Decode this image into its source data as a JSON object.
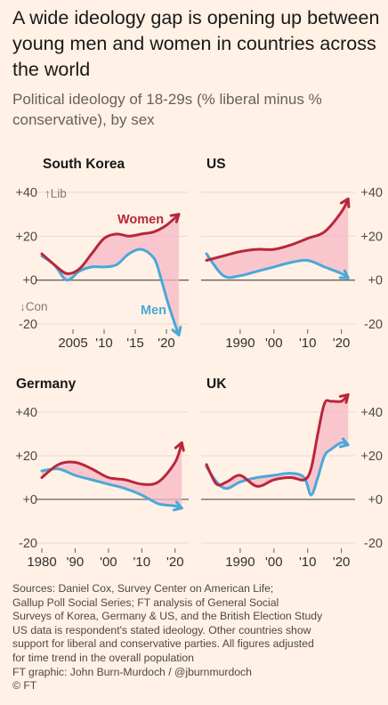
{
  "header": {
    "title": "A wide ideology gap is opening up between young men and women in countries across the world",
    "subtitle": "Political ideology of 18-29s (% liberal minus % conservative), by sex"
  },
  "colors": {
    "women": "#b8273b",
    "men": "#4aa8d8",
    "gap_fill": "#f8b7c6",
    "background": "#fff1e5"
  },
  "chart_data": [
    {
      "type": "line",
      "title": "South Korea",
      "ylim": [
        -20,
        40
      ],
      "xlim": [
        2000,
        2023
      ],
      "yticks": [
        40,
        20,
        0,
        -20
      ],
      "ytick_labels": [
        "+40",
        "+20",
        "+0",
        "-20"
      ],
      "xticks": [
        2005,
        2010,
        2015,
        2020
      ],
      "xtick_labels": [
        "2005",
        "'10",
        "'15",
        "'20"
      ],
      "annotations": {
        "up": "↑Lib",
        "down": "↓Con"
      },
      "series": [
        {
          "name": "Women",
          "x": [
            2000,
            2002,
            2004,
            2006,
            2008,
            2010,
            2012,
            2014,
            2016,
            2018,
            2020,
            2022
          ],
          "y": [
            12,
            7,
            3,
            5,
            12,
            19,
            21,
            20,
            21,
            22,
            25,
            30
          ]
        },
        {
          "name": "Men",
          "x": [
            2000,
            2002,
            2004,
            2006,
            2008,
            2010,
            2012,
            2014,
            2016,
            2018,
            2019,
            2020,
            2021,
            2022
          ],
          "y": [
            11,
            7,
            0,
            4,
            6,
            6,
            7,
            12,
            14,
            10,
            2,
            -8,
            -17,
            -25
          ]
        }
      ]
    },
    {
      "type": "line",
      "title": "US",
      "ylim": [
        -20,
        40
      ],
      "xlim": [
        1980,
        2023
      ],
      "yticks": [
        40,
        20,
        0,
        -20
      ],
      "ytick_labels": [
        "+40",
        "+20",
        "+0",
        "-20"
      ],
      "xticks": [
        1990,
        2000,
        2010,
        2020
      ],
      "xtick_labels": [
        "1990",
        "'00",
        "'10",
        "'20"
      ],
      "series": [
        {
          "name": "Women",
          "x": [
            1980,
            1985,
            1990,
            1995,
            2000,
            2005,
            2010,
            2015,
            2020,
            2022
          ],
          "y": [
            9,
            11,
            13,
            14,
            14,
            16,
            19,
            22,
            31,
            37
          ]
        },
        {
          "name": "Men",
          "x": [
            1980,
            1985,
            1990,
            1995,
            2000,
            2005,
            2010,
            2015,
            2020,
            2022
          ],
          "y": [
            12,
            2,
            2,
            4,
            6,
            8,
            9,
            6,
            3,
            1
          ]
        }
      ]
    },
    {
      "type": "line",
      "title": "Germany",
      "ylim": [
        -20,
        40
      ],
      "xlim": [
        1980,
        2023
      ],
      "yticks": [
        40,
        20,
        0,
        -20
      ],
      "ytick_labels": [
        "+40",
        "+20",
        "+0",
        "-20"
      ],
      "xticks": [
        1980,
        1990,
        2000,
        2010,
        2020
      ],
      "xtick_labels": [
        "1980",
        "'90",
        "'00",
        "'10",
        "'20"
      ],
      "series": [
        {
          "name": "Women",
          "x": [
            1980,
            1985,
            1990,
            1995,
            2000,
            2005,
            2010,
            2015,
            2020,
            2022
          ],
          "y": [
            10,
            16,
            17,
            14,
            10,
            9,
            7,
            8,
            17,
            26
          ]
        },
        {
          "name": "Men",
          "x": [
            1980,
            1985,
            1990,
            1995,
            2000,
            2005,
            2010,
            2015,
            2020,
            2022
          ],
          "y": [
            13,
            14,
            11,
            9,
            7,
            5,
            2,
            -2,
            -3,
            -4
          ]
        }
      ]
    },
    {
      "type": "line",
      "title": "UK",
      "ylim": [
        -20,
        40
      ],
      "xlim": [
        1980,
        2023
      ],
      "yticks": [
        40,
        20,
        0,
        -20
      ],
      "ytick_labels": [
        "+40",
        "+20",
        "+0",
        "-20"
      ],
      "xticks": [
        1990,
        2000,
        2010,
        2020
      ],
      "xtick_labels": [
        "1990",
        "'00",
        "'10",
        "'20"
      ],
      "series": [
        {
          "name": "Women",
          "x": [
            1980,
            1983,
            1986,
            1990,
            1995,
            2000,
            2005,
            2009,
            2011,
            2013,
            2015,
            2017,
            2020,
            2022
          ],
          "y": [
            16,
            7,
            8,
            11,
            6,
            9,
            10,
            9,
            14,
            30,
            44,
            45,
            45,
            48
          ]
        },
        {
          "name": "Men",
          "x": [
            1980,
            1983,
            1986,
            1990,
            1995,
            2000,
            2005,
            2009,
            2011,
            2013,
            2015,
            2017,
            2020,
            2022
          ],
          "y": [
            15,
            8,
            5,
            8,
            10,
            11,
            12,
            10,
            2,
            10,
            20,
            23,
            26,
            25
          ]
        }
      ]
    }
  ],
  "footer": {
    "lines": [
      "Sources: Daniel Cox, Survey Center on American Life;",
      "Gallup Poll Social Series; FT analysis of General Social",
      "Surveys of Korea, Germany & US, and the British Election Study",
      "US data is respondent's stated ideology. Other countries show",
      "support for liberal and conservative parties. All figures adjusted",
      "for time trend in the overall population",
      "FT graphic: John Burn-Murdoch / @jburnmurdoch",
      "© FT"
    ]
  }
}
